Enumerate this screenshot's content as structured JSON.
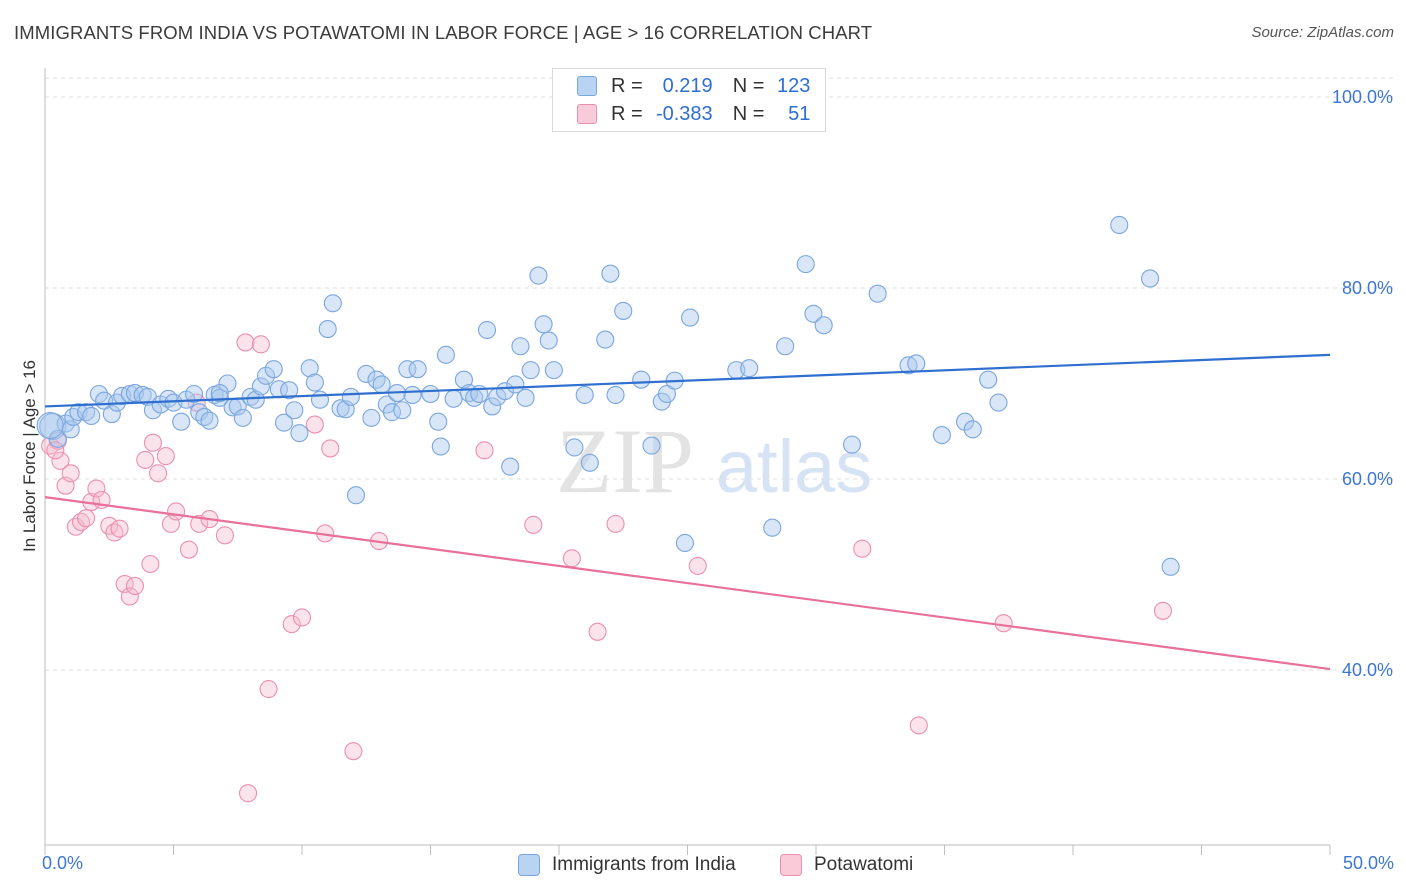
{
  "header": {
    "title": "IMMIGRANTS FROM INDIA VS POTAWATOMI IN LABOR FORCE | AGE > 16 CORRELATION CHART",
    "source": "Source: ZipAtlas.com"
  },
  "legend_top": {
    "rows": [
      {
        "r_label": "R =",
        "r_value": "0.219",
        "n_label": "N =",
        "n_value": "123"
      },
      {
        "r_label": "R =",
        "r_value": "-0.383",
        "n_label": "N =",
        "n_value": "51"
      }
    ]
  },
  "watermark": {
    "zip": "ZIP",
    "atlas": "atlas"
  },
  "colors": {
    "blue_fill": "#a9c7ee",
    "blue_stroke": "#7aa6e0",
    "blue_line": "#2f6fcf",
    "pink_fill": "#f5b8cc",
    "pink_stroke": "#ec8fae",
    "pink_line": "#e8709a",
    "axis_text": "#3d76d1",
    "grid": "#dedede"
  },
  "chart_data": {
    "type": "scatter",
    "title": "IMMIGRANTS FROM INDIA VS POTAWATOMI IN LABOR FORCE | AGE > 16 CORRELATION CHART",
    "xlabel": "",
    "ylabel": "In Labor Force | Age > 16",
    "xlim": [
      0,
      50
    ],
    "ylim": [
      20,
      102
    ],
    "x_tick_labels": [
      "0.0%",
      "50.0%"
    ],
    "y_ticks": [
      40,
      60,
      80,
      100
    ],
    "y_tick_labels": [
      "40.0%",
      "60.0%",
      "80.0%",
      "100.0%"
    ],
    "grid": true,
    "legend_position": "bottom",
    "series": [
      {
        "name": "Immigrants from India",
        "color": "#a9c7ee",
        "trend": {
          "x": [
            0,
            50
          ],
          "y": [
            67.6,
            73.0
          ]
        },
        "points": [
          [
            0.3,
            65.5
          ],
          [
            0.5,
            64.2
          ],
          [
            0.8,
            65.8
          ],
          [
            1.0,
            65.2
          ],
          [
            1.1,
            66.5
          ],
          [
            1.3,
            67.0
          ],
          [
            1.6,
            67.0
          ],
          [
            1.8,
            66.6
          ],
          [
            2.1,
            68.9
          ],
          [
            2.3,
            68.2
          ],
          [
            2.6,
            66.8
          ],
          [
            2.8,
            68.0
          ],
          [
            3.0,
            68.7
          ],
          [
            3.3,
            68.9
          ],
          [
            3.5,
            69.0
          ],
          [
            3.8,
            68.8
          ],
          [
            4.0,
            68.6
          ],
          [
            4.2,
            67.2
          ],
          [
            4.5,
            67.8
          ],
          [
            4.8,
            68.4
          ],
          [
            5.0,
            68.0
          ],
          [
            5.3,
            66.0
          ],
          [
            5.5,
            68.3
          ],
          [
            5.8,
            68.9
          ],
          [
            6.0,
            67.0
          ],
          [
            6.2,
            66.5
          ],
          [
            6.4,
            66.1
          ],
          [
            6.6,
            68.8
          ],
          [
            6.8,
            68.5
          ],
          [
            7.1,
            70.0
          ],
          [
            7.3,
            67.5
          ],
          [
            7.5,
            67.6
          ],
          [
            7.7,
            66.4
          ],
          [
            8.0,
            68.6
          ],
          [
            8.2,
            68.3
          ],
          [
            8.4,
            69.7
          ],
          [
            8.6,
            70.8
          ],
          [
            8.9,
            71.5
          ],
          [
            9.1,
            69.4
          ],
          [
            9.3,
            65.9
          ],
          [
            9.5,
            69.3
          ],
          [
            9.7,
            67.2
          ],
          [
            9.9,
            64.8
          ],
          [
            10.3,
            71.6
          ],
          [
            10.5,
            70.1
          ],
          [
            10.7,
            68.3
          ],
          [
            11.0,
            75.7
          ],
          [
            11.2,
            78.4
          ],
          [
            11.5,
            67.4
          ],
          [
            11.7,
            67.3
          ],
          [
            11.9,
            68.6
          ],
          [
            12.1,
            58.3
          ],
          [
            12.5,
            71.0
          ],
          [
            12.7,
            66.4
          ],
          [
            12.9,
            70.4
          ],
          [
            13.1,
            69.9
          ],
          [
            13.3,
            67.8
          ],
          [
            13.5,
            67.0
          ],
          [
            13.7,
            69.0
          ],
          [
            13.9,
            67.2
          ],
          [
            14.1,
            71.5
          ],
          [
            14.3,
            68.8
          ],
          [
            14.5,
            71.5
          ],
          [
            15.0,
            68.9
          ],
          [
            15.3,
            66.0
          ],
          [
            15.4,
            63.4
          ],
          [
            15.6,
            73.0
          ],
          [
            15.9,
            68.4
          ],
          [
            16.3,
            70.4
          ],
          [
            16.5,
            69.0
          ],
          [
            16.7,
            68.5
          ],
          [
            16.9,
            68.9
          ],
          [
            17.2,
            75.6
          ],
          [
            17.4,
            67.6
          ],
          [
            17.6,
            68.6
          ],
          [
            17.9,
            69.2
          ],
          [
            18.1,
            61.3
          ],
          [
            18.3,
            69.9
          ],
          [
            18.5,
            73.9
          ],
          [
            18.7,
            68.5
          ],
          [
            18.9,
            71.4
          ],
          [
            19.2,
            81.3
          ],
          [
            19.4,
            76.2
          ],
          [
            19.6,
            74.5
          ],
          [
            19.8,
            71.4
          ],
          [
            20.6,
            63.3
          ],
          [
            21.0,
            68.8
          ],
          [
            21.2,
            61.7
          ],
          [
            21.8,
            74.6
          ],
          [
            22.0,
            81.5
          ],
          [
            22.2,
            68.8
          ],
          [
            22.5,
            77.6
          ],
          [
            23.2,
            70.4
          ],
          [
            23.6,
            63.5
          ],
          [
            24.0,
            68.1
          ],
          [
            24.2,
            68.9
          ],
          [
            24.5,
            70.3
          ],
          [
            24.9,
            53.3
          ],
          [
            25.1,
            76.9
          ],
          [
            26.9,
            71.4
          ],
          [
            27.4,
            71.6
          ],
          [
            28.3,
            54.9
          ],
          [
            28.8,
            73.9
          ],
          [
            29.6,
            82.5
          ],
          [
            29.9,
            77.3
          ],
          [
            30.3,
            76.1
          ],
          [
            31.4,
            63.6
          ],
          [
            32.4,
            79.4
          ],
          [
            33.6,
            71.9
          ],
          [
            33.9,
            72.1
          ],
          [
            34.9,
            64.6
          ],
          [
            35.8,
            66.0
          ],
          [
            36.1,
            65.2
          ],
          [
            36.7,
            70.4
          ],
          [
            37.1,
            68.0
          ],
          [
            41.8,
            86.6
          ],
          [
            43.0,
            81.0
          ],
          [
            43.8,
            50.8
          ],
          [
            0.2,
            65.6
          ],
          [
            6.8,
            69.0
          ]
        ],
        "point_sizes": {
          "default": 1,
          "large": [
            [
              0.3,
              65.5
            ],
            [
              0.2,
              65.6
            ]
          ]
        }
      },
      {
        "name": "Potawatomi",
        "color": "#f5b8cc",
        "trend": {
          "x": [
            0,
            50
          ],
          "y": [
            58.1,
            40.1
          ]
        },
        "points": [
          [
            0.2,
            63.5
          ],
          [
            0.5,
            64.0
          ],
          [
            0.6,
            61.9
          ],
          [
            0.8,
            59.3
          ],
          [
            1.0,
            60.6
          ],
          [
            1.2,
            55.0
          ],
          [
            1.4,
            55.5
          ],
          [
            1.6,
            55.9
          ],
          [
            1.8,
            57.6
          ],
          [
            2.0,
            59.0
          ],
          [
            2.2,
            57.8
          ],
          [
            2.5,
            55.1
          ],
          [
            2.7,
            54.4
          ],
          [
            2.9,
            54.8
          ],
          [
            3.1,
            49.0
          ],
          [
            3.3,
            47.7
          ],
          [
            3.5,
            48.8
          ],
          [
            3.9,
            62.0
          ],
          [
            4.1,
            51.1
          ],
          [
            4.2,
            63.8
          ],
          [
            4.4,
            60.6
          ],
          [
            4.7,
            62.4
          ],
          [
            4.9,
            55.3
          ],
          [
            5.1,
            56.6
          ],
          [
            5.6,
            52.6
          ],
          [
            6.0,
            55.3
          ],
          [
            6.4,
            55.8
          ],
          [
            7.0,
            54.1
          ],
          [
            7.8,
            74.3
          ],
          [
            7.9,
            27.1
          ],
          [
            8.4,
            74.1
          ],
          [
            8.7,
            38.0
          ],
          [
            9.6,
            44.8
          ],
          [
            10.0,
            45.5
          ],
          [
            10.5,
            65.7
          ],
          [
            10.9,
            54.3
          ],
          [
            11.1,
            63.2
          ],
          [
            12.0,
            31.5
          ],
          [
            13.0,
            53.5
          ],
          [
            17.1,
            63.0
          ],
          [
            19.0,
            55.2
          ],
          [
            20.5,
            51.7
          ],
          [
            21.5,
            44.0
          ],
          [
            22.2,
            55.3
          ],
          [
            25.4,
            50.9
          ],
          [
            31.8,
            52.7
          ],
          [
            34.0,
            34.2
          ],
          [
            37.3,
            44.9
          ],
          [
            43.5,
            46.2
          ],
          [
            5.9,
            68.0
          ],
          [
            0.4,
            63.0
          ]
        ]
      }
    ]
  },
  "bottom_legend": {
    "items": [
      {
        "label": "Immigrants from India"
      },
      {
        "label": "Potawatomi"
      }
    ]
  }
}
